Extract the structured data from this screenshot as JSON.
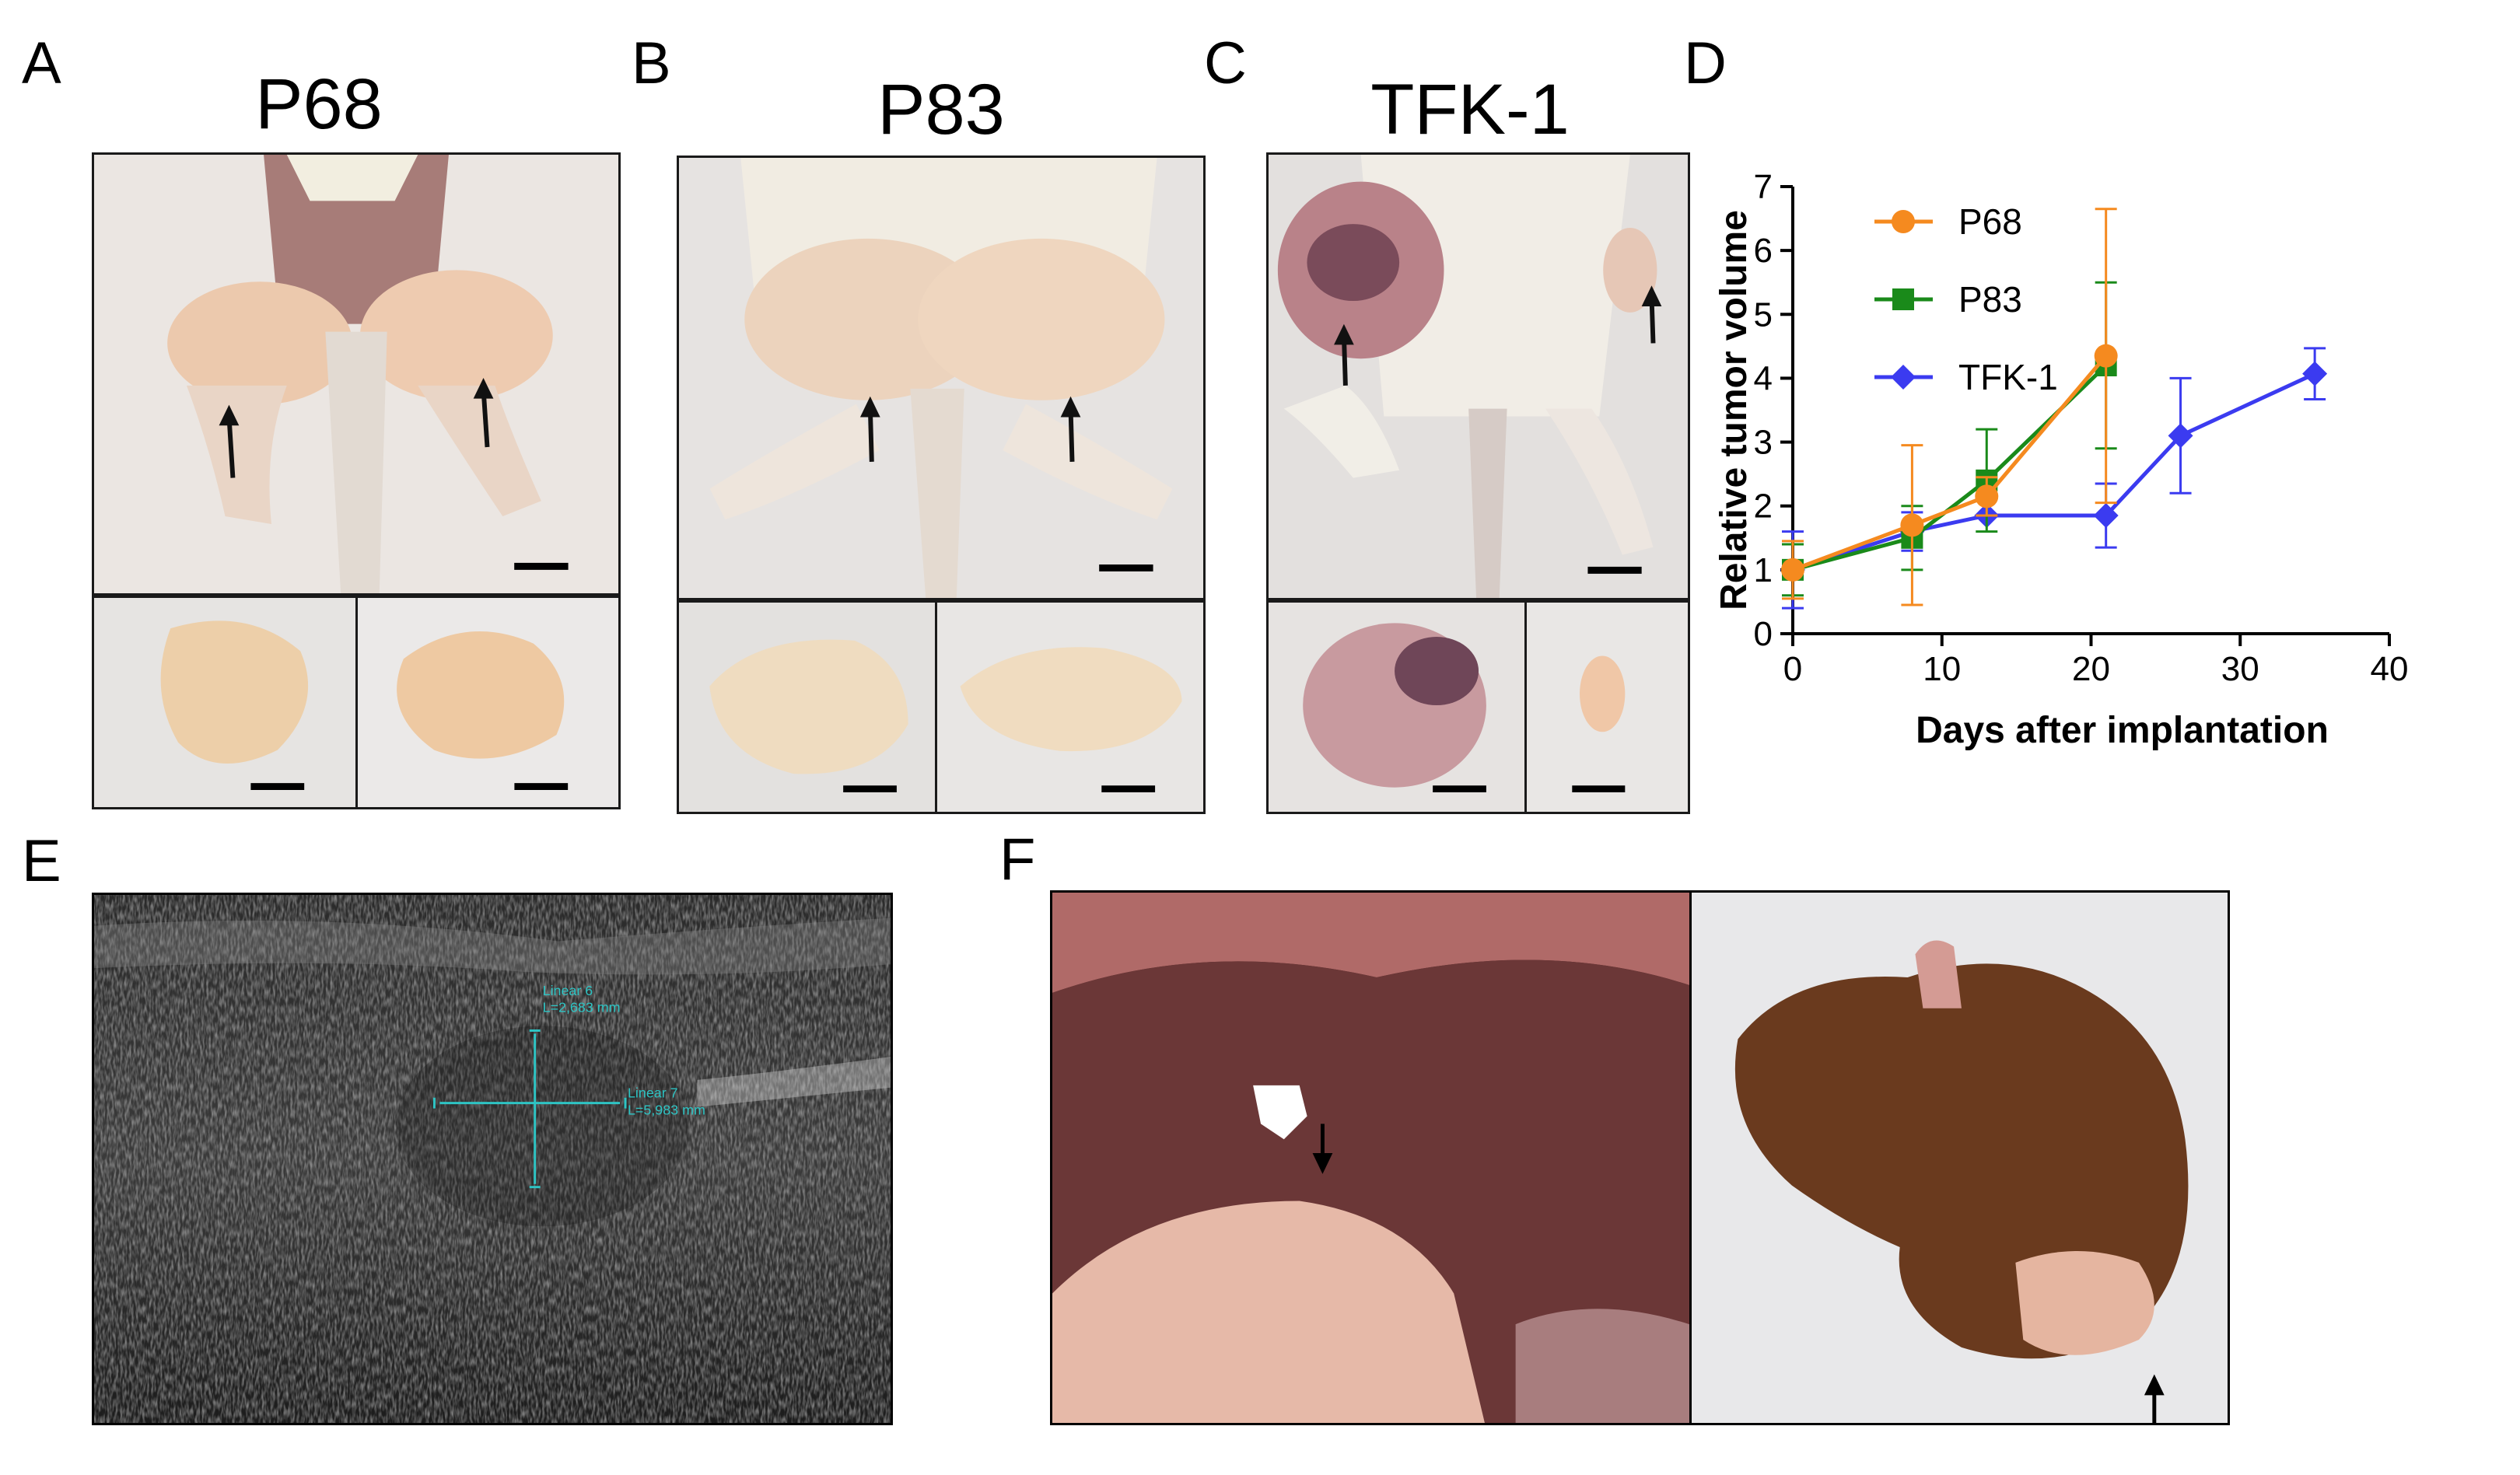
{
  "panels": {
    "A": {
      "label": "A",
      "title": "P68"
    },
    "B": {
      "label": "B",
      "title": "P83"
    },
    "C": {
      "label": "C",
      "title": "TFK-1"
    },
    "D": {
      "label": "D"
    },
    "E": {
      "label": "E"
    },
    "F": {
      "label": "F"
    }
  },
  "ultrasound": {
    "measure1_name": "Linear 6",
    "measure1_value": "L=2,683 mm",
    "measure2_name": "Linear 7",
    "measure2_value": "L=5,983 mm"
  },
  "colors": {
    "P68": "#f58a1f",
    "P83": "#1a8a1a",
    "TFK-1": "#3b3bf0",
    "axis": "#000000"
  },
  "chart_data": {
    "type": "line",
    "title": "",
    "xlabel": "Days after implantation",
    "ylabel": "Relative tumor volume",
    "xlim": [
      0,
      40
    ],
    "ylim": [
      0,
      7
    ],
    "xticks": [
      0,
      10,
      20,
      30,
      40
    ],
    "yticks": [
      0,
      1,
      2,
      3,
      4,
      5,
      6,
      7
    ],
    "grid": false,
    "legend_position": "top-left",
    "series": [
      {
        "name": "P68",
        "marker": "circle",
        "x": [
          0,
          8,
          13,
          21
        ],
        "y": [
          1.0,
          1.7,
          2.15,
          4.35
        ],
        "err": [
          0.45,
          1.25,
          0.3,
          2.3
        ]
      },
      {
        "name": "P83",
        "marker": "square",
        "x": [
          0,
          8,
          13,
          21
        ],
        "y": [
          1.0,
          1.5,
          2.4,
          4.2
        ],
        "err": [
          0.4,
          0.5,
          0.8,
          1.3
        ]
      },
      {
        "name": "TFK-1",
        "marker": "diamond",
        "x": [
          0,
          8,
          13,
          21,
          26,
          35
        ],
        "y": [
          1.0,
          1.6,
          1.85,
          1.85,
          3.1,
          4.07
        ],
        "err": [
          0.6,
          0.3,
          0.0,
          0.5,
          0.9,
          0.4
        ]
      }
    ]
  }
}
